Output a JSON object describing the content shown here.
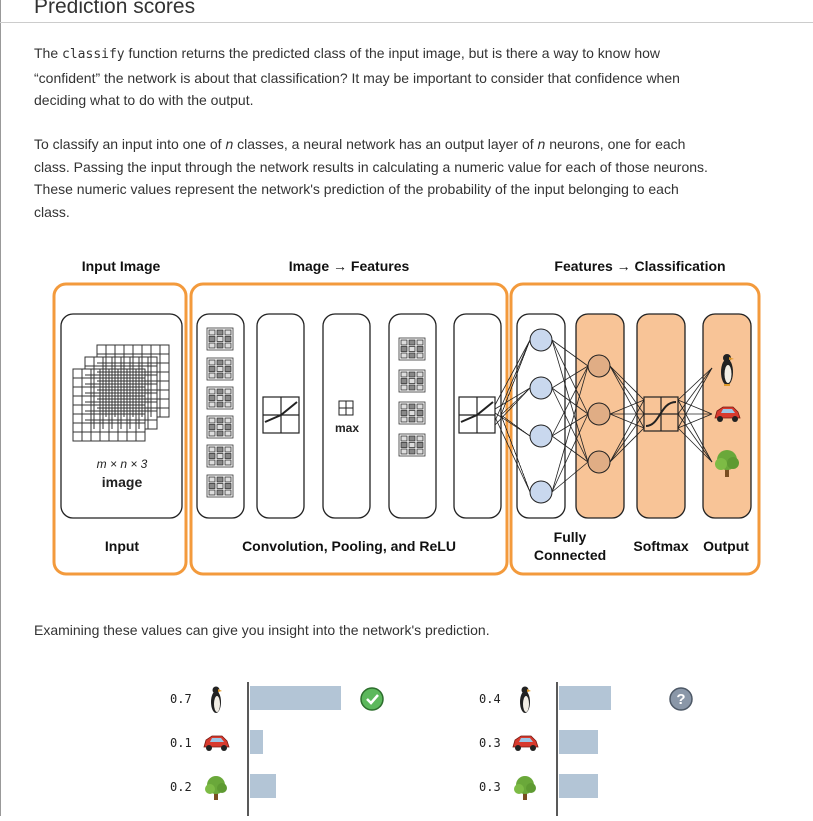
{
  "section": {
    "title": "Prediction scores",
    "para1": {
      "a": "The ",
      "code": "classify",
      "b": " function returns the predicted class of the input image, but is there a way to know how “confident” the network is about that classification? It may be important to consider that confidence when deciding what to do with the output."
    },
    "para2": {
      "a": "To classify an input into one of ",
      "n1": "n",
      "b": " classes, a neural network has an output layer of ",
      "n2": "n",
      "c": " neurons, one for each class. Passing the input through the network results in calculating a numeric value for each of those neurons. These numeric values represent the network's prediction of the probability of the input belonging to each class."
    },
    "para3": "Examining these values can give you insight into the network's prediction."
  },
  "diagram": {
    "headers": {
      "input": "Input Image",
      "features": "Image → Features",
      "classification": "Features → Classification"
    },
    "input_dims": "m × n × 3",
    "input_word": "image",
    "max_label": "max",
    "footers": {
      "input": "Input",
      "conv": "Convolution, Pooling, and ReLU",
      "fc1": "Fully",
      "fc2": "Connected",
      "softmax": "Softmax",
      "output": "Output"
    },
    "colors": {
      "orange": "#f39a3c",
      "peach": "#f8c497",
      "neuron_blue": "#c9d8ee",
      "neuron_orange": "#e0ad85"
    }
  },
  "scores": {
    "left": {
      "values": [
        "0.7",
        "0.1",
        "0.2"
      ],
      "fractions": [
        0.7,
        0.1,
        0.2
      ],
      "status_icon": "check-icon"
    },
    "right": {
      "values": [
        "0.4",
        "0.3",
        "0.3"
      ],
      "fractions": [
        0.4,
        0.3,
        0.3
      ],
      "status_icon": "question-icon"
    },
    "class_icons": [
      "penguin-icon",
      "car-icon",
      "tree-icon"
    ],
    "bar_color": "#b3c5d6"
  }
}
